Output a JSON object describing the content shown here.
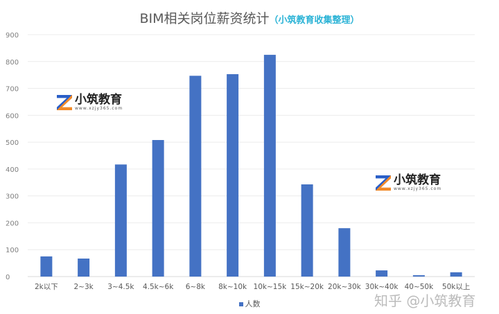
{
  "chart_data": {
    "type": "bar",
    "title": "BIM相关岗位薪资统计",
    "subtitle": "（小筑教育收集整理）",
    "categories": [
      "2k以下",
      "2~3k",
      "3~4.5k",
      "4.5k~6k",
      "6~8k",
      "8k~10k",
      "10k~15k",
      "15k~20k",
      "20k~30k",
      "30k~40k",
      "40~50k",
      "50k以上"
    ],
    "series": [
      {
        "name": "人数",
        "values": [
          75,
          67,
          417,
          508,
          747,
          753,
          825,
          343,
          180,
          23,
          5,
          16
        ]
      }
    ],
    "ylim": [
      0,
      900
    ],
    "yticks": [
      0,
      100,
      200,
      300,
      400,
      500,
      600,
      700,
      800,
      900
    ],
    "grid": true,
    "legend": "bottom",
    "bar_color": "#4472c4"
  },
  "watermarks": {
    "logo_text": "小筑教育",
    "logo_url": "www.xzjy365.com",
    "zhihu": "知乎 @小筑教育"
  }
}
